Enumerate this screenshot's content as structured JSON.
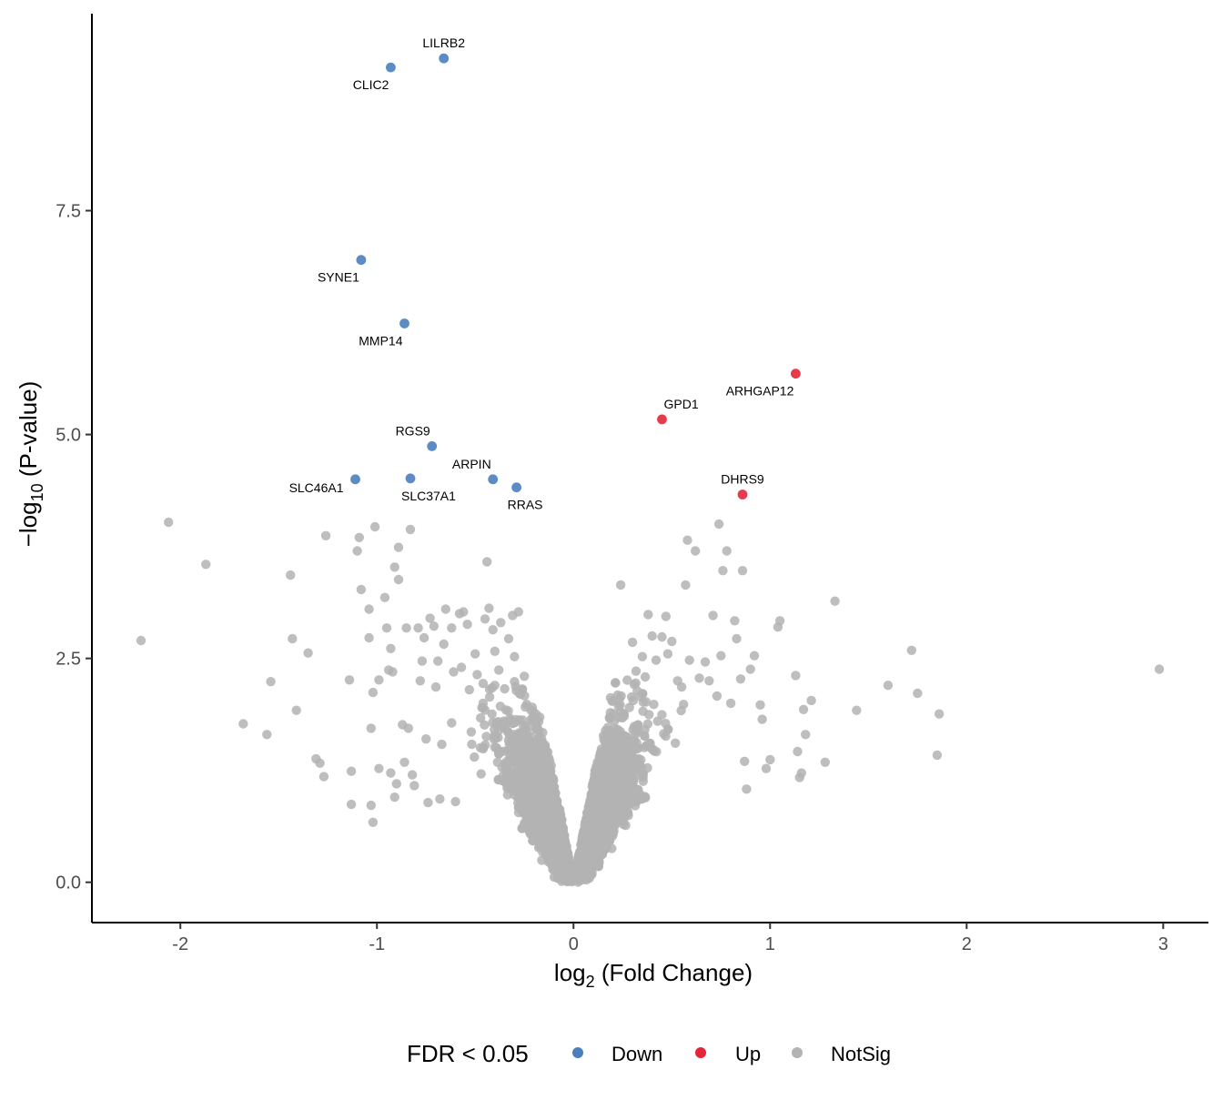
{
  "chart_data": {
    "type": "scatter",
    "xlabel": {
      "base": "log",
      "sub": "2",
      "rest": " (Fold Change)"
    },
    "ylabel": {
      "prefix": "−log",
      "sub": "10",
      "rest": " (P-value)"
    },
    "xlim": [
      -2.45,
      3.23
    ],
    "ylim": [
      -0.45,
      9.7
    ],
    "x_ticks": [
      -2,
      -1,
      0,
      1,
      2,
      3
    ],
    "x_tick_labels": [
      "-2",
      "-1",
      "0",
      "1",
      "2",
      "3"
    ],
    "y_ticks": [
      0,
      2.5,
      5,
      7.5
    ],
    "y_tick_labels": [
      "0.0",
      "2.5",
      "5.0",
      "7.5"
    ],
    "colors": {
      "Down": "#4a7fbd",
      "Up": "#e3263a",
      "NotSig": "#b3b3b3"
    },
    "legend": {
      "title": "FDR < 0.05",
      "position": "bottom",
      "items": [
        {
          "name": "Down",
          "color": "#4a7fbd"
        },
        {
          "name": "Up",
          "color": "#e3263a"
        },
        {
          "name": "NotSig",
          "color": "#b3b3b3"
        }
      ]
    },
    "labeled_points": [
      {
        "gene": "LILRB2",
        "x": -0.66,
        "y": 9.2,
        "group": "Down",
        "label_pos": "above"
      },
      {
        "gene": "CLIC2",
        "x": -0.93,
        "y": 9.1,
        "group": "Down",
        "label_pos": "below-left"
      },
      {
        "gene": "SYNE1",
        "x": -1.08,
        "y": 6.95,
        "group": "Down",
        "label_pos": "below-left"
      },
      {
        "gene": "MMP14",
        "x": -0.86,
        "y": 6.24,
        "group": "Down",
        "label_pos": "below-left"
      },
      {
        "gene": "RGS9",
        "x": -0.72,
        "y": 4.87,
        "group": "Down",
        "label_pos": "above-left"
      },
      {
        "gene": "SLC46A1",
        "x": -1.11,
        "y": 4.5,
        "group": "Down",
        "label_pos": "left"
      },
      {
        "gene": "SLC37A1",
        "x": -0.83,
        "y": 4.51,
        "group": "Down",
        "label_pos": "below-right"
      },
      {
        "gene": "ARPIN",
        "x": -0.41,
        "y": 4.5,
        "group": "Down",
        "label_pos": "above-left"
      },
      {
        "gene": "RRAS",
        "x": -0.29,
        "y": 4.41,
        "group": "Down",
        "label_pos": "below-right"
      },
      {
        "gene": "ARHGAP12",
        "x": 1.13,
        "y": 5.68,
        "group": "Up",
        "label_pos": "below-left"
      },
      {
        "gene": "GPD1",
        "x": 0.45,
        "y": 5.17,
        "group": "Up",
        "label_pos": "above-right"
      },
      {
        "gene": "DHRS9",
        "x": 0.86,
        "y": 4.33,
        "group": "Up",
        "label_pos": "above"
      }
    ],
    "notsig_outliers": [
      [
        -2.2,
        2.7
      ],
      [
        -2.06,
        4.02
      ],
      [
        -1.87,
        3.55
      ],
      [
        -1.68,
        1.77
      ],
      [
        -1.56,
        1.65
      ],
      [
        -1.54,
        2.24
      ],
      [
        -1.44,
        3.43
      ],
      [
        -1.43,
        2.72
      ],
      [
        -1.41,
        1.92
      ],
      [
        -1.35,
        2.56
      ],
      [
        -1.31,
        1.38
      ],
      [
        -1.29,
        1.33
      ],
      [
        -1.27,
        1.18
      ],
      [
        -1.26,
        3.87
      ],
      [
        -1.14,
        2.26
      ],
      [
        -1.13,
        0.87
      ],
      [
        -1.13,
        1.24
      ],
      [
        -1.1,
        3.7
      ],
      [
        -1.09,
        3.85
      ],
      [
        -1.08,
        3.27
      ],
      [
        -1.04,
        3.05
      ],
      [
        -1.04,
        2.73
      ],
      [
        -1.03,
        0.86
      ],
      [
        -1.03,
        1.72
      ],
      [
        -1.02,
        2.12
      ],
      [
        -1.02,
        0.67
      ],
      [
        -1.01,
        3.97
      ],
      [
        -0.99,
        1.27
      ],
      [
        -0.99,
        2.26
      ],
      [
        -0.96,
        3.18
      ],
      [
        -0.95,
        2.84
      ],
      [
        -0.94,
        2.37
      ],
      [
        -0.93,
        2.61
      ],
      [
        -0.93,
        1.22
      ],
      [
        -0.92,
        2.35
      ],
      [
        -0.91,
        3.52
      ],
      [
        -0.91,
        0.95
      ],
      [
        -0.9,
        1.1
      ],
      [
        -0.89,
        3.74
      ],
      [
        -0.89,
        3.38
      ],
      [
        -0.87,
        1.76
      ],
      [
        -0.86,
        1.34
      ],
      [
        -0.85,
        2.84
      ],
      [
        -0.84,
        1.72
      ],
      [
        -0.83,
        3.94
      ],
      [
        -0.82,
        1.2
      ],
      [
        -0.81,
        1.08
      ],
      [
        -0.79,
        2.84
      ],
      [
        -0.78,
        2.25
      ],
      [
        -0.77,
        2.47
      ],
      [
        -0.76,
        2.73
      ],
      [
        -0.75,
        1.6
      ],
      [
        -0.74,
        0.89
      ],
      [
        -0.73,
        2.95
      ],
      [
        -0.71,
        2.86
      ],
      [
        -0.7,
        2.18
      ],
      [
        -0.69,
        2.47
      ],
      [
        -0.68,
        0.93
      ],
      [
        -0.67,
        1.54
      ],
      [
        -0.66,
        2.66
      ],
      [
        -0.65,
        3.05
      ],
      [
        -0.62,
        2.84
      ],
      [
        -0.62,
        1.78
      ],
      [
        -0.61,
        2.35
      ],
      [
        -0.6,
        0.9
      ],
      [
        -0.58,
        3.0
      ],
      [
        -0.57,
        2.4
      ],
      [
        -0.56,
        3.02
      ],
      [
        -0.54,
        2.88
      ],
      [
        -0.53,
        2.15
      ],
      [
        -0.52,
        1.68
      ],
      [
        -0.5,
        2.55
      ],
      [
        -0.49,
        2.32
      ],
      [
        -0.47,
        1.21
      ],
      [
        -0.46,
        2.22
      ],
      [
        -0.45,
        2.94
      ],
      [
        -0.44,
        3.58
      ],
      [
        -0.43,
        3.06
      ],
      [
        -0.41,
        2.82
      ],
      [
        -0.4,
        2.58
      ],
      [
        -0.38,
        2.37
      ],
      [
        -0.37,
        2.9
      ],
      [
        -0.35,
        2.16
      ],
      [
        -0.33,
        2.72
      ],
      [
        -0.31,
        2.98
      ],
      [
        -0.3,
        2.52
      ],
      [
        -0.3,
        2.24
      ],
      [
        -0.28,
        3.02
      ],
      [
        -0.27,
        2.1
      ],
      [
        -0.25,
        2.3
      ],
      [
        -0.23,
        1.6
      ],
      [
        -0.22,
        1.34
      ],
      [
        0.24,
        3.32
      ],
      [
        0.3,
        2.68
      ],
      [
        0.35,
        2.52
      ],
      [
        0.38,
        2.99
      ],
      [
        0.4,
        2.75
      ],
      [
        0.42,
        2.48
      ],
      [
        0.45,
        2.74
      ],
      [
        0.47,
        2.97
      ],
      [
        0.48,
        2.55
      ],
      [
        0.5,
        2.69
      ],
      [
        0.53,
        2.25
      ],
      [
        0.55,
        2.18
      ],
      [
        0.57,
        3.32
      ],
      [
        0.58,
        3.82
      ],
      [
        0.59,
        2.48
      ],
      [
        0.62,
        3.7
      ],
      [
        0.64,
        2.28
      ],
      [
        0.67,
        2.46
      ],
      [
        0.69,
        2.25
      ],
      [
        0.71,
        2.98
      ],
      [
        0.73,
        2.08
      ],
      [
        0.74,
        4.0
      ],
      [
        0.75,
        2.53
      ],
      [
        0.76,
        3.48
      ],
      [
        0.78,
        3.7
      ],
      [
        0.8,
        2.0
      ],
      [
        0.82,
        2.92
      ],
      [
        0.83,
        2.72
      ],
      [
        0.85,
        2.27
      ],
      [
        0.86,
        3.48
      ],
      [
        0.87,
        1.35
      ],
      [
        0.88,
        1.04
      ],
      [
        0.9,
        2.38
      ],
      [
        0.92,
        2.53
      ],
      [
        0.95,
        1.98
      ],
      [
        0.96,
        1.82
      ],
      [
        0.98,
        1.27
      ],
      [
        1.0,
        1.37
      ],
      [
        1.04,
        2.85
      ],
      [
        1.05,
        2.92
      ],
      [
        1.13,
        2.31
      ],
      [
        1.14,
        1.46
      ],
      [
        1.15,
        1.17
      ],
      [
        1.16,
        1.22
      ],
      [
        1.17,
        1.93
      ],
      [
        1.18,
        1.65
      ],
      [
        1.21,
        2.03
      ],
      [
        1.28,
        1.34
      ],
      [
        1.33,
        3.14
      ],
      [
        1.44,
        1.92
      ],
      [
        1.6,
        2.2
      ],
      [
        1.72,
        2.59
      ],
      [
        1.75,
        2.11
      ],
      [
        1.85,
        1.42
      ],
      [
        1.86,
        1.88
      ],
      [
        2.98,
        2.38
      ]
    ],
    "notsig_cloud_summary": {
      "n": 5000,
      "x_range": [
        -0.95,
        0.95
      ],
      "y_range": [
        0,
        2.4
      ]
    }
  }
}
